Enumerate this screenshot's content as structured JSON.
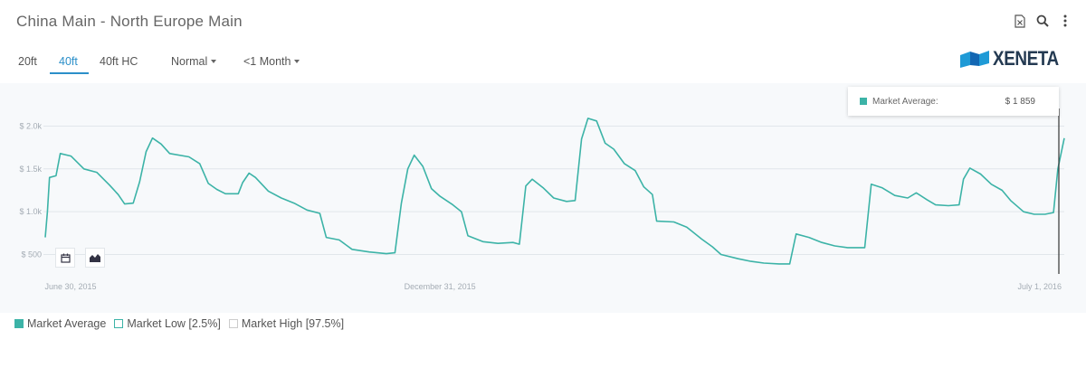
{
  "title": "China Main - North Europe Main",
  "toolbar": {
    "icons": [
      "excel-export-icon",
      "search-icon",
      "more-vertical-icon"
    ]
  },
  "tabs": [
    {
      "label": "20ft",
      "active": false
    },
    {
      "label": "40ft",
      "active": true
    },
    {
      "label": "40ft HC",
      "active": false
    }
  ],
  "dropdowns": {
    "mode": "Normal",
    "period": "<1 Month"
  },
  "logo": {
    "text": "XENETA"
  },
  "tooltip": {
    "label": "Market Average:",
    "value": "$ 1 859"
  },
  "legend": [
    {
      "label": "Market Average",
      "color": "#3cb3a7",
      "filled": true
    },
    {
      "label": "Market Low [2.5%]",
      "color": "#3cb3a7",
      "filled": false
    },
    {
      "label": "Market High [97.5%]",
      "color": "#cccccc",
      "filled": false
    }
  ],
  "chart_data": {
    "type": "line",
    "title": "",
    "xlabel": "",
    "ylabel": "",
    "x_ticks": [
      "June 30, 2015",
      "December 31, 2015",
      "July 1, 2016"
    ],
    "y_ticks": [
      "$ 500",
      "$ 1.0k",
      "$ 1.5k",
      "$ 2.0k"
    ],
    "ylim": [
      0,
      2700
    ],
    "grid": true,
    "series": [
      {
        "name": "Market Average",
        "color": "#3cb3a7",
        "points": [
          [
            "2015-06-30",
            700
          ],
          [
            "2015-07-01",
            1000
          ],
          [
            "2015-07-02",
            1400
          ],
          [
            "2015-07-05",
            1420
          ],
          [
            "2015-07-07",
            1680
          ],
          [
            "2015-07-12",
            1650
          ],
          [
            "2015-07-18",
            1500
          ],
          [
            "2015-07-24",
            1460
          ],
          [
            "2015-07-30",
            1310
          ],
          [
            "2015-08-03",
            1200
          ],
          [
            "2015-08-06",
            1090
          ],
          [
            "2015-08-10",
            1100
          ],
          [
            "2015-08-13",
            1350
          ],
          [
            "2015-08-16",
            1700
          ],
          [
            "2015-08-19",
            1860
          ],
          [
            "2015-08-23",
            1790
          ],
          [
            "2015-08-27",
            1680
          ],
          [
            "2015-09-05",
            1640
          ],
          [
            "2015-09-10",
            1560
          ],
          [
            "2015-09-14",
            1330
          ],
          [
            "2015-09-18",
            1260
          ],
          [
            "2015-09-22",
            1210
          ],
          [
            "2015-09-28",
            1210
          ],
          [
            "2015-09-30",
            1340
          ],
          [
            "2015-10-03",
            1450
          ],
          [
            "2015-10-06",
            1400
          ],
          [
            "2015-10-12",
            1240
          ],
          [
            "2015-10-18",
            1160
          ],
          [
            "2015-10-24",
            1100
          ],
          [
            "2015-10-30",
            1020
          ],
          [
            "2015-11-05",
            980
          ],
          [
            "2015-11-08",
            700
          ],
          [
            "2015-11-14",
            670
          ],
          [
            "2015-11-20",
            560
          ],
          [
            "2015-11-28",
            530
          ],
          [
            "2015-12-06",
            510
          ],
          [
            "2015-12-10",
            520
          ],
          [
            "2015-12-13",
            1100
          ],
          [
            "2015-12-16",
            1500
          ],
          [
            "2015-12-19",
            1660
          ],
          [
            "2015-12-23",
            1530
          ],
          [
            "2015-12-27",
            1270
          ],
          [
            "2015-12-31",
            1180
          ],
          [
            "2016-01-06",
            1080
          ],
          [
            "2016-01-10",
            1000
          ],
          [
            "2016-01-13",
            720
          ],
          [
            "2016-01-20",
            650
          ],
          [
            "2016-01-27",
            630
          ],
          [
            "2016-02-03",
            640
          ],
          [
            "2016-02-06",
            620
          ],
          [
            "2016-02-09",
            1300
          ],
          [
            "2016-02-12",
            1380
          ],
          [
            "2016-02-17",
            1280
          ],
          [
            "2016-02-22",
            1160
          ],
          [
            "2016-02-28",
            1120
          ],
          [
            "2016-03-03",
            1130
          ],
          [
            "2016-03-06",
            1850
          ],
          [
            "2016-03-09",
            2090
          ],
          [
            "2016-03-13",
            2060
          ],
          [
            "2016-03-17",
            1800
          ],
          [
            "2016-03-21",
            1730
          ],
          [
            "2016-03-26",
            1560
          ],
          [
            "2016-03-31",
            1480
          ],
          [
            "2016-04-04",
            1290
          ],
          [
            "2016-04-08",
            1200
          ],
          [
            "2016-04-10",
            890
          ],
          [
            "2016-04-18",
            880
          ],
          [
            "2016-04-24",
            820
          ],
          [
            "2016-05-01",
            680
          ],
          [
            "2016-05-06",
            590
          ],
          [
            "2016-05-10",
            500
          ],
          [
            "2016-05-18",
            450
          ],
          [
            "2016-05-24",
            420
          ],
          [
            "2016-05-30",
            400
          ],
          [
            "2016-06-06",
            390
          ],
          [
            "2016-06-11",
            390
          ],
          [
            "2016-06-14",
            740
          ],
          [
            "2016-06-20",
            700
          ],
          [
            "2016-06-26",
            640
          ],
          [
            "2016-07-02",
            600
          ],
          [
            "2016-07-08",
            580
          ],
          [
            "2016-07-16",
            580
          ],
          [
            "2016-07-19",
            1320
          ],
          [
            "2016-07-24",
            1280
          ],
          [
            "2016-07-30",
            1190
          ],
          [
            "2016-08-05",
            1160
          ],
          [
            "2016-08-09",
            1220
          ],
          [
            "2016-08-14",
            1140
          ],
          [
            "2016-08-18",
            1080
          ],
          [
            "2016-08-24",
            1070
          ],
          [
            "2016-08-29",
            1080
          ],
          [
            "2016-08-31",
            1380
          ],
          [
            "2016-09-03",
            1510
          ],
          [
            "2016-09-08",
            1440
          ],
          [
            "2016-09-13",
            1320
          ],
          [
            "2016-09-18",
            1250
          ],
          [
            "2016-09-22",
            1130
          ],
          [
            "2016-09-28",
            1000
          ],
          [
            "2016-10-03",
            970
          ],
          [
            "2016-10-08",
            970
          ],
          [
            "2016-10-12",
            990
          ],
          [
            "2016-10-14",
            1500
          ],
          [
            "2016-10-17",
            1859
          ]
        ]
      }
    ]
  }
}
